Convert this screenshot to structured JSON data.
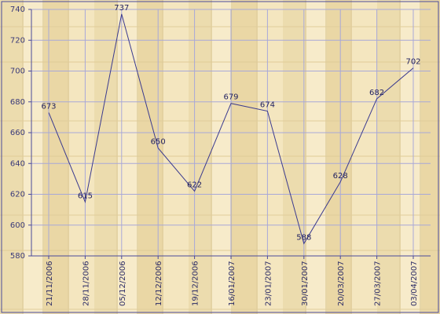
{
  "chart_data": {
    "type": "line",
    "title": "",
    "xlabel": "",
    "ylabel": "",
    "categories": [
      "21/11/2006",
      "28/11/2006",
      "05/12/2006",
      "12/12/2006",
      "19/12/2006",
      "16/01/2007",
      "23/01/2007",
      "30/01/2007",
      "20/03/2007",
      "27/03/2007",
      "03/04/2007"
    ],
    "series": [
      {
        "values": [
          673,
          615,
          737,
          650,
          622,
          679,
          674,
          588,
          628,
          682,
          702
        ]
      }
    ],
    "ylim": [
      580,
      740
    ],
    "yticks": [
      580,
      600,
      620,
      640,
      660,
      680,
      700,
      720,
      740
    ],
    "grid": true,
    "legend": "none",
    "colors": {
      "line": "#3a3a8f",
      "grid": "#a8a8d8",
      "axis": "#4a4a9a",
      "text": "#1f1f5f",
      "background_light": "#f3e7c2",
      "background_dark": "#d9c48f"
    }
  }
}
